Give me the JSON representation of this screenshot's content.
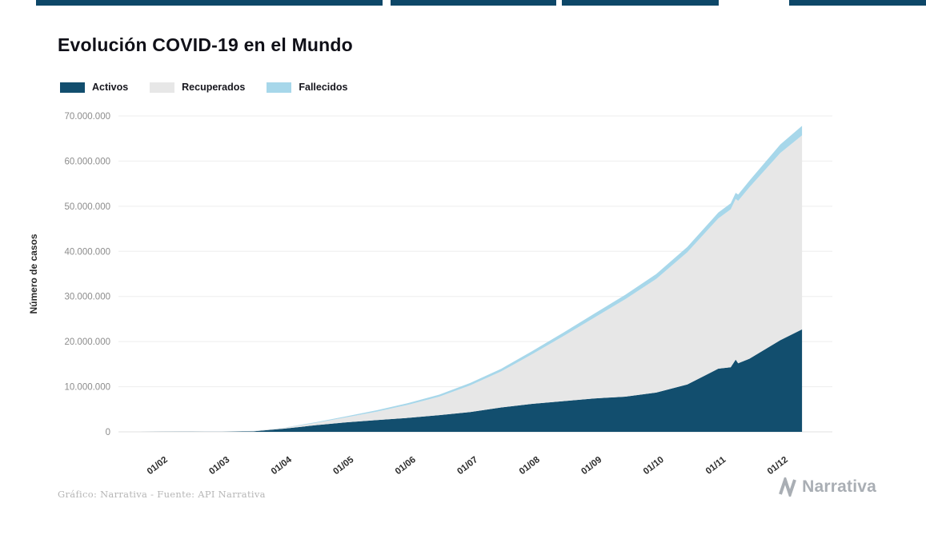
{
  "page": {
    "background": "#ffffff",
    "top_strip_color": "#0d4768"
  },
  "chart_data": {
    "type": "area",
    "variant": "stacked",
    "title": "Evolución COVID-19 en el Mundo",
    "ylabel": "Número de casos",
    "xlabel": "",
    "ylim": [
      0,
      70000000
    ],
    "grid": "horizontal",
    "legend_position": "top-left",
    "yticks": [
      0,
      10000000,
      20000000,
      30000000,
      40000000,
      50000000,
      60000000,
      70000000
    ],
    "ytick_labels": [
      "0",
      "10.000.000",
      "20.000.000",
      "30.000.000",
      "40.000.000",
      "50.000.000",
      "60.000.000",
      "70.000.000"
    ],
    "x_tick_labels": [
      "01/02",
      "01/03",
      "01/04",
      "01/05",
      "01/06",
      "01/07",
      "01/08",
      "01/09",
      "01/10",
      "01/11",
      "01/12"
    ],
    "x_tick_months": [
      0,
      1,
      2,
      3,
      4,
      5,
      6,
      7,
      8,
      9,
      10
    ],
    "x_months_since_first_tick": [
      -0.35,
      0,
      0.5,
      1,
      1.5,
      2,
      2.5,
      3,
      3.5,
      4,
      4.5,
      5,
      5.5,
      6,
      6.5,
      7,
      7.5,
      8,
      8.5,
      9,
      9.2,
      9.28,
      9.32,
      9.5,
      10,
      10.35
    ],
    "series": [
      {
        "name": "Activos",
        "color": "#124e6e",
        "values": [
          500,
          12000,
          50000,
          45000,
          100000,
          700000,
          1450000,
          2100000,
          2600000,
          3100000,
          3700000,
          4400000,
          5400000,
          6200000,
          6800000,
          7400000,
          7800000,
          8700000,
          10500000,
          14000000,
          14300000,
          16000000,
          15200000,
          16200000,
          20300000,
          22700000
        ]
      },
      {
        "name": "Recuperados",
        "color": "#e7e7e7",
        "values": [
          30,
          300,
          18000,
          42000,
          80000,
          200000,
          520000,
          1100000,
          1900000,
          2900000,
          4100000,
          5900000,
          8000000,
          11000000,
          14400000,
          17900000,
          21600000,
          25200000,
          29300000,
          33300000,
          35000000,
          35600000,
          36000000,
          38000000,
          41500000,
          43000000
        ]
      },
      {
        "name": "Fallecidos",
        "color": "#a7d7ea",
        "values": [
          20,
          300,
          2500,
          3000,
          7000,
          47000,
          140000,
          240000,
          310000,
          380000,
          440000,
          520000,
          590000,
          690000,
          770000,
          870000,
          970000,
          1080000,
          1170000,
          1300000,
          1350000,
          1370000,
          1380000,
          1450000,
          1900000,
          2100000
        ]
      }
    ]
  },
  "footer": {
    "credit": "Gráfico: Narrativa - Fuente: API Narrativa",
    "brand": "Narrativa"
  }
}
